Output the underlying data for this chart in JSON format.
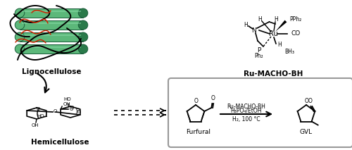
{
  "background_color": "#ffffff",
  "lignocellulose_label": "Lignocellulose",
  "hemicellulose_label": "Hemicellulose",
  "ru_macho_label": "Ru-MACHO-BH",
  "furfural_label": "Furfural",
  "gvl_label": "GVL",
  "reaction_line1": "Ru-MACHO-BH",
  "reaction_line2": "H₃PO₄/EtOH",
  "reaction_line3": "H₂, 100 °C",
  "figsize": [
    5.0,
    2.13
  ],
  "dpi": 100,
  "green_dark": "#2d8a5e",
  "green_light": "#4db87a",
  "green_fill": "#5cb87a",
  "red_color": "#cc2200",
  "box_color": "#999999"
}
